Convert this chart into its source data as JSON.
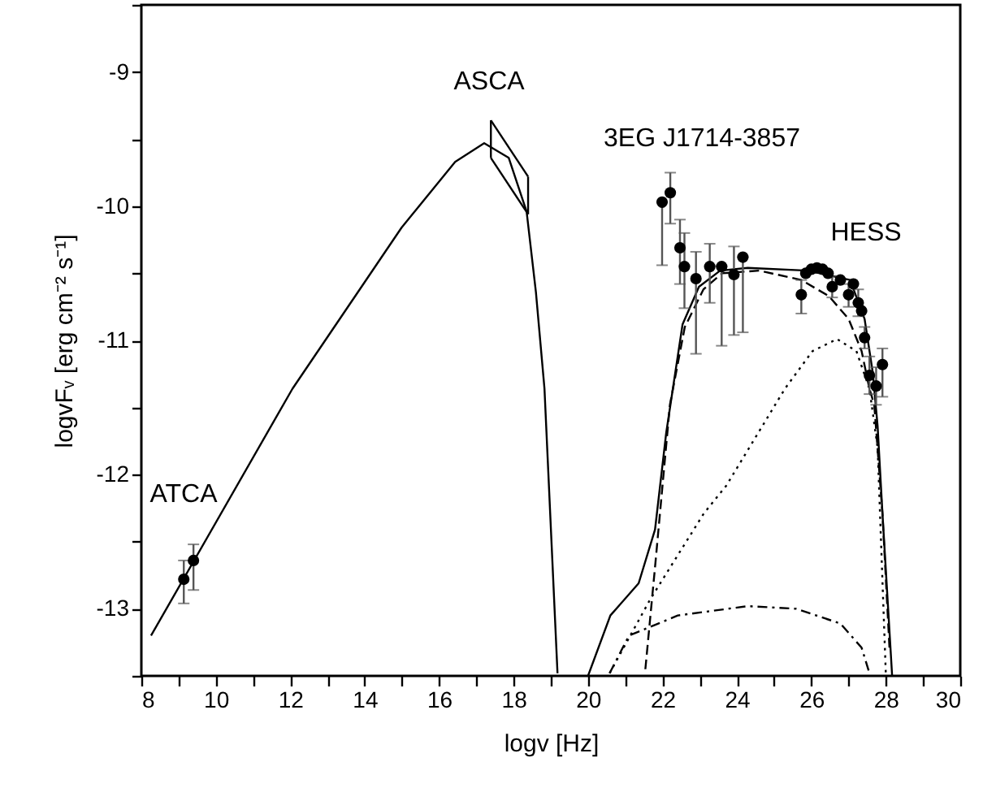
{
  "chart_data": {
    "type": "scatter",
    "xlabel": "logv [Hz]",
    "ylabel": "logvFᵥ [erg cm⁻² s⁻¹]",
    "xlim": [
      8,
      30
    ],
    "ylim": [
      -13.5,
      -8.5
    ],
    "xticks": [
      8,
      {
        "value": 9,
        "label": null
      },
      10,
      {
        "value": 11,
        "label": null
      },
      12,
      {
        "value": 13,
        "label": null
      },
      14,
      {
        "value": 15,
        "label": null
      },
      16,
      {
        "value": 17,
        "label": null
      },
      18,
      {
        "value": 19,
        "label": null
      },
      20,
      {
        "value": 21,
        "label": null
      },
      22,
      {
        "value": 23,
        "label": null
      },
      24,
      {
        "value": 25,
        "label": null
      },
      26,
      {
        "value": 27,
        "label": null
      },
      28,
      {
        "value": 29,
        "label": null
      },
      30
    ],
    "yticks": [
      {
        "value": -13.5,
        "label": null
      },
      -13,
      {
        "value": -12.5,
        "label": null
      },
      -12,
      {
        "value": -11.5,
        "label": null
      },
      -11,
      {
        "value": -10.5,
        "label": null
      },
      -10,
      {
        "value": -9.5,
        "label": null
      },
      -9,
      {
        "value": -8.5,
        "label": null
      }
    ],
    "grid": false,
    "series": [
      {
        "type": "line",
        "color": "#000000",
        "marker": "none",
        "line_style": "solid",
        "x": [
          8.26,
          12.06,
          14.99,
          16.43,
          17.21,
          17.87,
          18.35,
          18.6,
          18.83,
          19.18
        ],
        "values": [
          -13.2,
          -11.36,
          -10.16,
          -9.67,
          -9.53,
          -9.64,
          -10.04,
          -10.64,
          -11.36,
          -13.48
        ]
      },
      {
        "type": "line",
        "color": "#000000",
        "marker": "none",
        "line_style": "solid",
        "x": [
          17.39,
          18.39
        ],
        "values": [
          -9.36,
          -9.78
        ],
        "errors": [
          [
            -9.64,
            -9.36
          ],
          [
            -10.06,
            -9.78
          ]
        ]
      },
      {
        "type": "line",
        "color": "#000000",
        "marker": "none",
        "line_style": "solid",
        "x": [
          17.39,
          18.39
        ],
        "values": [
          -9.64,
          -10.06
        ]
      },
      {
        "type": "line",
        "color": "#000000",
        "marker": "none",
        "line_style": "solid",
        "x": [
          20.0,
          20.6,
          21.36,
          21.8,
          22.1,
          22.54,
          22.98,
          23.55,
          24.29,
          25.9,
          27.04,
          27.43,
          27.65,
          27.78,
          27.91,
          28.17
        ],
        "values": [
          -13.5,
          -13.05,
          -12.81,
          -12.41,
          -11.69,
          -10.88,
          -10.6,
          -10.48,
          -10.46,
          -10.48,
          -10.55,
          -10.84,
          -11.24,
          -11.64,
          -12.29,
          -13.5
        ]
      },
      {
        "type": "line",
        "color": "#000000",
        "marker": "none",
        "line_style": "dashed",
        "x": [
          21.54,
          21.8,
          22.2,
          22.6,
          23.1,
          23.6,
          24.6,
          25.73,
          26.47,
          27.0,
          27.35,
          27.56,
          27.69,
          27.91,
          28.1
        ],
        "values": [
          -13.45,
          -12.69,
          -11.48,
          -10.9,
          -10.62,
          -10.5,
          -10.48,
          -10.55,
          -10.67,
          -10.84,
          -11.08,
          -11.36,
          -11.48,
          -12.29,
          -13.3
        ]
      },
      {
        "type": "line",
        "color": "#000000",
        "marker": "none",
        "line_style": "dotted",
        "x": [
          20.58,
          21.67,
          23.11,
          23.72,
          25.29,
          26.03,
          26.69,
          27.21,
          27.56,
          27.78,
          28.0
        ],
        "values": [
          -13.48,
          -12.93,
          -12.29,
          -12.08,
          -11.36,
          -11.08,
          -10.99,
          -11.08,
          -11.36,
          -11.8,
          -13.48
        ]
      },
      {
        "type": "line",
        "color": "#000000",
        "marker": "none",
        "line_style": "dashdot",
        "x": [
          20.58,
          21.1,
          22.41,
          24.29,
          25.6,
          26.78,
          27.35,
          27.56
        ],
        "values": [
          -13.48,
          -13.2,
          -13.05,
          -12.98,
          -13.0,
          -13.11,
          -13.29,
          -13.48
        ]
      },
      {
        "color": "#000000",
        "marker": "circle",
        "x": [
          9.14,
          9.4
        ],
        "values": [
          -12.78,
          -12.64
        ],
        "errors": [
          [
            -12.96,
            -12.64
          ],
          [
            -12.86,
            -12.52
          ]
        ]
      },
      {
        "color": "#000000",
        "marker": "circle",
        "x": [
          21.99,
          22.21,
          22.47,
          22.59,
          22.9,
          23.27,
          23.59,
          23.92,
          24.16
        ],
        "values": [
          -9.97,
          -9.9,
          -10.31,
          -10.45,
          -10.54,
          -10.45,
          -10.45,
          -10.51,
          -10.38
        ],
        "errors": [
          [
            -10.44,
            -9.97
          ],
          [
            -10.13,
            -9.75
          ],
          [
            -10.58,
            -10.1
          ],
          [
            -10.76,
            -10.2
          ],
          [
            -11.1,
            -10.34
          ],
          [
            -10.72,
            -10.28
          ],
          [
            -11.04,
            -10.45
          ],
          [
            -10.96,
            -10.3
          ],
          [
            -10.94,
            -10.38
          ]
        ]
      },
      {
        "color": "#000000",
        "marker": "circle",
        "x": [
          25.73,
          25.85,
          26.0,
          26.15,
          26.3,
          26.45,
          26.56,
          26.78,
          27.0,
          27.13,
          27.26,
          27.35,
          27.43,
          27.56,
          27.74,
          27.91
        ],
        "values": [
          -10.66,
          -10.5,
          -10.47,
          -10.46,
          -10.47,
          -10.5,
          -10.6,
          -10.55,
          -10.66,
          -10.58,
          -10.72,
          -10.78,
          -10.98,
          -11.26,
          -11.34,
          -11.18
        ],
        "errors": [
          [
            -10.8,
            -10.55
          ],
          null,
          null,
          null,
          null,
          null,
          [
            -10.68,
            -10.52
          ],
          null,
          [
            -10.75,
            -10.58
          ],
          null,
          [
            -10.82,
            -10.62
          ],
          null,
          [
            -11.06,
            -10.9
          ],
          [
            -11.4,
            -11.12
          ],
          [
            -11.48,
            -11.2
          ],
          [
            -11.42,
            -11.06
          ]
        ]
      }
    ],
    "annotations": [
      "ATCA",
      "ASCA",
      "3EG J1714-3857",
      "HESS"
    ]
  }
}
